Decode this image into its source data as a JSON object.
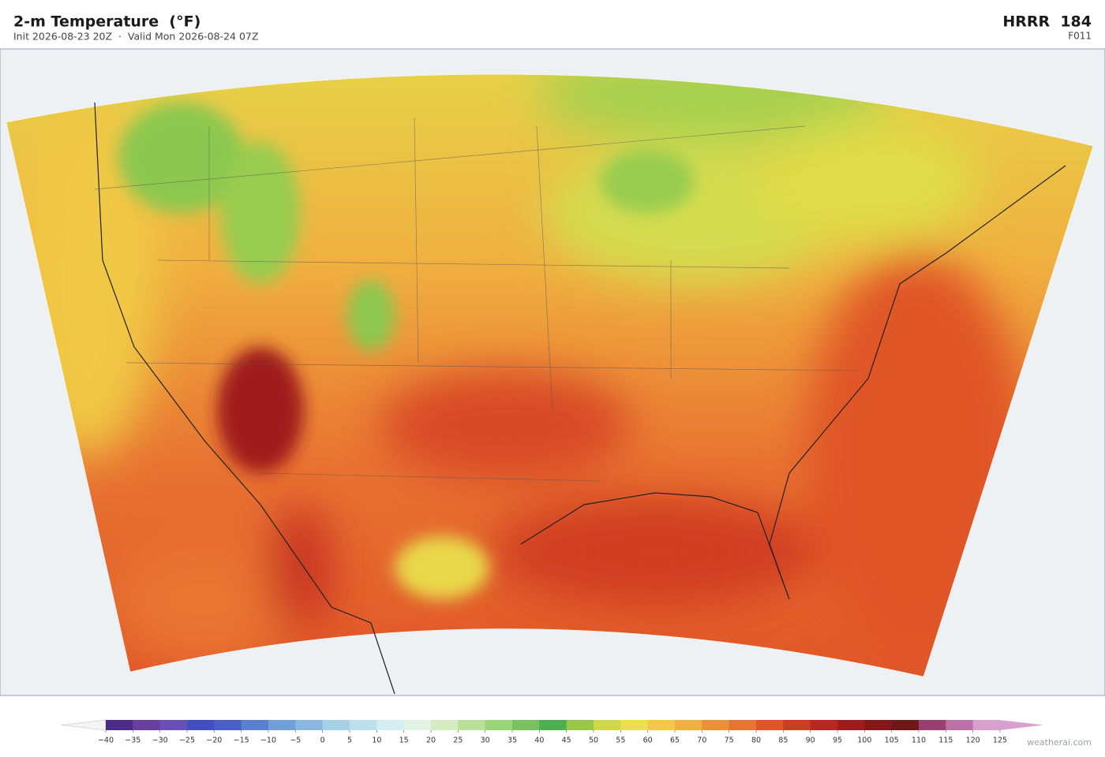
{
  "header": {
    "title": "2-m Temperature  (°F)",
    "subtitle": "Init 2026-08-23 20Z  ·  Valid Mon 2026-08-24 07Z",
    "model": "HRRR  184",
    "forecast_hour": "F011"
  },
  "colorbar": {
    "ticks": [
      {
        "value": -40,
        "label": "−40"
      },
      {
        "value": -35,
        "label": "−35"
      },
      {
        "value": -30,
        "label": "−30"
      },
      {
        "value": -25,
        "label": "−25"
      },
      {
        "value": -20,
        "label": "−20"
      },
      {
        "value": -15,
        "label": "−15"
      },
      {
        "value": -10,
        "label": "−10"
      },
      {
        "value": -5,
        "label": "−5"
      },
      0,
      5,
      10,
      15,
      20,
      25,
      30,
      35,
      40,
      45,
      50,
      55,
      60,
      65,
      70,
      75,
      80,
      85,
      90,
      95,
      100,
      105,
      110,
      115,
      120,
      125
    ],
    "colors": [
      "#4b2a8a",
      "#6a3fa0",
      "#6a4fb8",
      "#4050c0",
      "#4a60c8",
      "#5a80d0",
      "#70a0d8",
      "#8ab8e0",
      "#a6d0e8",
      "#bce0ee",
      "#d4eef2",
      "#e4f4e4",
      "#d4ecc0",
      "#b8e098",
      "#98d478",
      "#78c060",
      "#4caf50",
      "#98c848",
      "#cfd848",
      "#ece048",
      "#f4c844",
      "#f0b040",
      "#ec9038",
      "#e87432",
      "#e05428",
      "#d03c22",
      "#b82820",
      "#a01c1c",
      "#861818",
      "#701818",
      "#9a4070",
      "#c070a8",
      "#d8a0cc"
    ],
    "under_color": "#f4f4f4",
    "over_color": "#d8a0d0"
  },
  "footer": {
    "credit": "weatherai.com"
  }
}
